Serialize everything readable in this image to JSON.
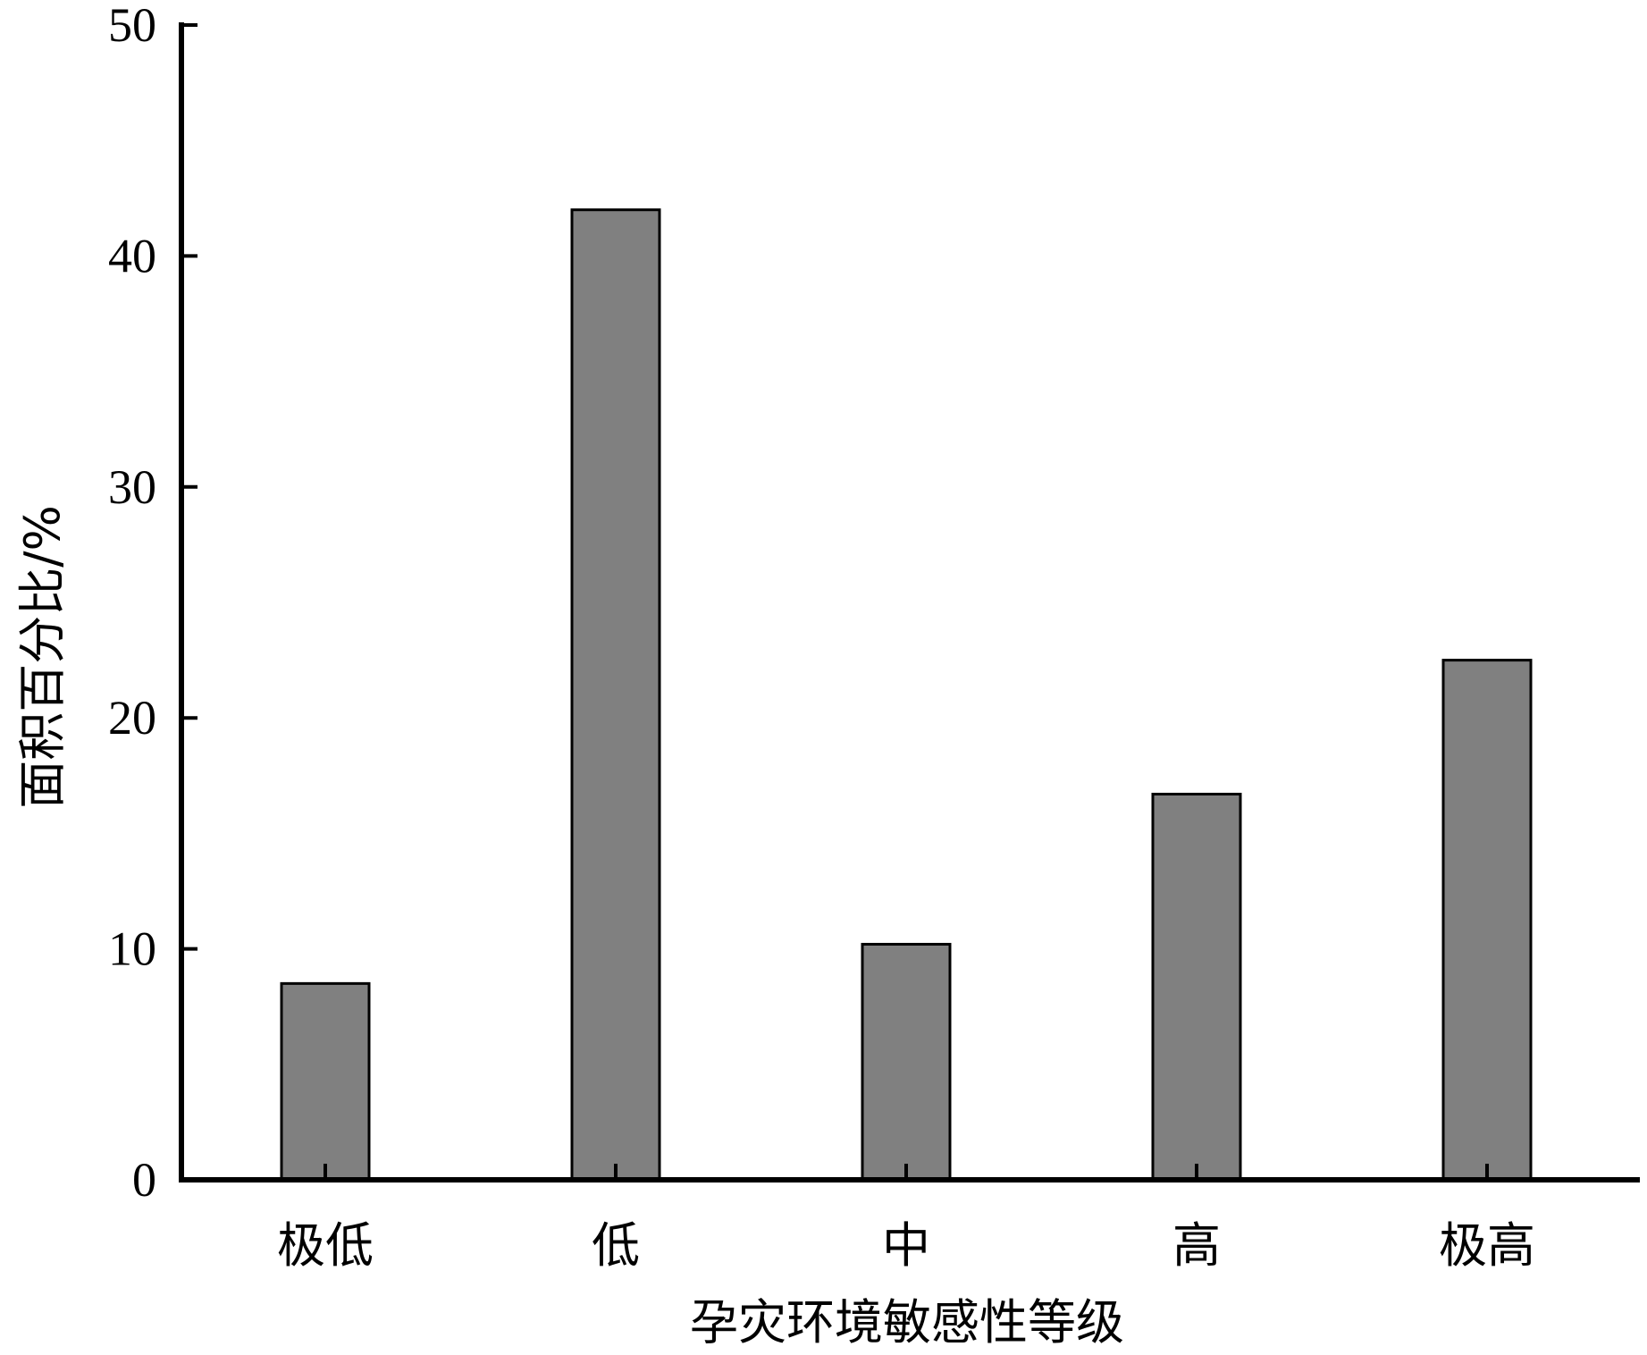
{
  "chart_data": {
    "type": "bar",
    "categories": [
      "极低",
      "低",
      "中",
      "高",
      "极高"
    ],
    "values": [
      8.5,
      42.0,
      10.2,
      16.7,
      22.5
    ],
    "title": "",
    "xlabel": "孕灾环境敏感性等级",
    "ylabel": "面积百分比/%",
    "ylim": [
      0,
      50
    ],
    "yticks": [
      0,
      10,
      20,
      30,
      40,
      50
    ],
    "grid": false,
    "bar_color": "#808080",
    "bar_edge_color": "#000000",
    "axis_color": "#000000"
  }
}
